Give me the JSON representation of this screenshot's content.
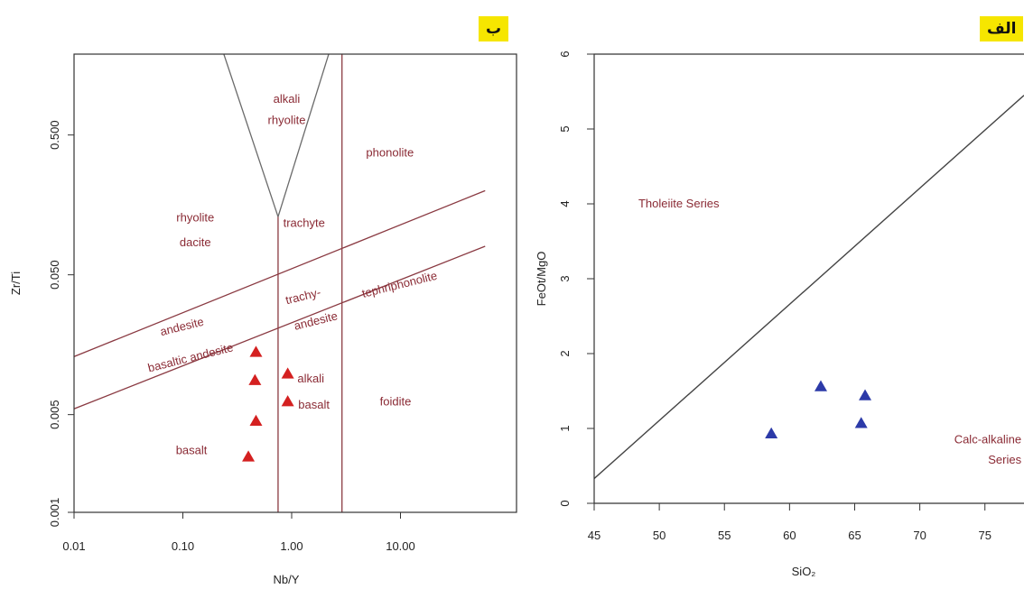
{
  "panels": {
    "left_label": "ب",
    "right_label": "الف"
  },
  "chart_data": [
    {
      "type": "scatter",
      "xlabel": "Nb/Y",
      "ylabel": "Zr/Ti",
      "x_scale": "log",
      "y_scale": "log",
      "x_ticks": [
        "0.01",
        "0.10",
        "1.00",
        "10.00"
      ],
      "y_ticks": [
        "0.001",
        "0.005",
        "0.050",
        "0.500"
      ],
      "field_labels": [
        {
          "text": "alkali",
          "x": 0.9,
          "y": 0.85
        },
        {
          "text": "rhyolite",
          "x": 0.9,
          "y": 0.6
        },
        {
          "text": "phonolite",
          "x": 8,
          "y": 0.35
        },
        {
          "text": "rhyolite",
          "x": 0.13,
          "y": 0.12
        },
        {
          "text": "dacite",
          "x": 0.13,
          "y": 0.08
        },
        {
          "text": "trachyte",
          "x": 1.3,
          "y": 0.11
        },
        {
          "text": "trachy-",
          "x": 1.3,
          "y": 0.033
        },
        {
          "text": "andesite",
          "x": 1.7,
          "y": 0.022
        },
        {
          "text": "tephriphonolite",
          "x": 10,
          "y": 0.04
        },
        {
          "text": "andesite",
          "x": 0.1,
          "y": 0.02
        },
        {
          "text": "basaltic andesite",
          "x": 0.12,
          "y": 0.012
        },
        {
          "text": "alkali",
          "x": 1.5,
          "y": 0.0085
        },
        {
          "text": "basalt",
          "x": 1.6,
          "y": 0.0055
        },
        {
          "text": "foidite",
          "x": 9,
          "y": 0.0058
        },
        {
          "text": "basalt",
          "x": 0.12,
          "y": 0.0026
        }
      ],
      "series": [
        {
          "marker": "triangle",
          "color": "#d42020",
          "points": [
            [
              0.47,
              0.014
            ],
            [
              0.46,
              0.0088
            ],
            [
              0.92,
              0.0098
            ],
            [
              0.92,
              0.0062
            ],
            [
              0.47,
              0.0045
            ],
            [
              0.4,
              0.0025
            ]
          ]
        }
      ],
      "boundaries": [
        [
          [
            0.19,
            3.2
          ],
          [
            0.75,
            0.13
          ]
        ],
        [
          [
            0.75,
            0.13
          ],
          [
            2.7,
            3.2
          ]
        ],
        [
          [
            0.75,
            0.13
          ],
          [
            0.75,
            0.001
          ]
        ],
        [
          [
            2.9,
            1.9
          ],
          [
            2.9,
            0.001
          ]
        ],
        [
          [
            0.01,
            0.013
          ],
          [
            60,
            0.2
          ]
        ],
        [
          [
            0.01,
            0.0055
          ],
          [
            60,
            0.08
          ]
        ]
      ]
    },
    {
      "type": "scatter",
      "xlabel": "SiO₂",
      "ylabel": "FeOt/MgO",
      "xlim": [
        45,
        78
      ],
      "ylim": [
        0,
        6
      ],
      "x_ticks": [
        "45",
        "50",
        "55",
        "60",
        "65",
        "70",
        "75"
      ],
      "y_ticks": [
        "0",
        "1",
        "2",
        "3",
        "4",
        "5",
        "6"
      ],
      "field_labels": [
        {
          "text": "Tholeiite Series",
          "x": 51.5,
          "y": 3.95
        },
        {
          "text": "Calc-alkaline",
          "x": 77.8,
          "y": 0.8
        },
        {
          "text": "Series",
          "x": 77.8,
          "y": 0.53
        }
      ],
      "series": [
        {
          "marker": "triangle",
          "color": "#2c3aa8",
          "points": [
            [
              58.6,
              0.93
            ],
            [
              62.4,
              1.56
            ],
            [
              65.8,
              1.44
            ],
            [
              65.5,
              1.07
            ]
          ]
        }
      ],
      "boundaries": [
        [
          [
            45,
            0.33
          ],
          [
            78,
            5.45
          ]
        ]
      ]
    }
  ]
}
